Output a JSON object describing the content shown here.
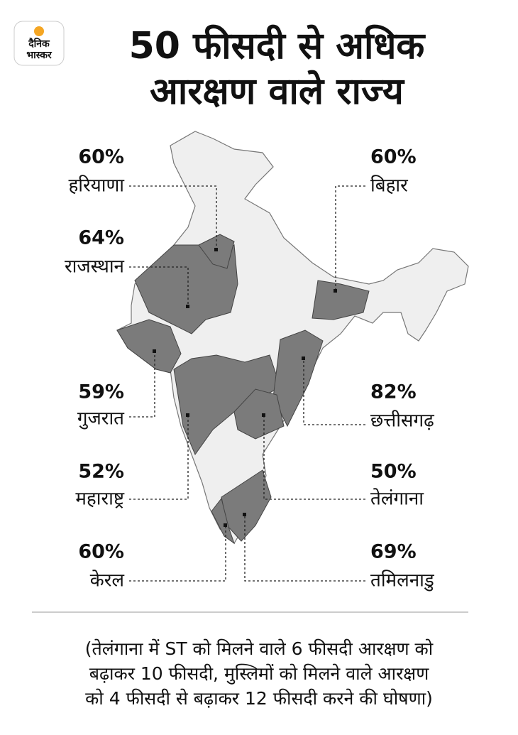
{
  "logo": {
    "line1": "दैनिक",
    "line2": "भास्कर"
  },
  "title": {
    "line1": "50 फीसदी से अधिक",
    "line2": "आरक्षण वाले राज्य"
  },
  "states": [
    {
      "percent": "60%",
      "name": "हरियाणा"
    },
    {
      "percent": "64%",
      "name": "राजस्थान"
    },
    {
      "percent": "59%",
      "name": "गुजरात"
    },
    {
      "percent": "52%",
      "name": "महाराष्ट्र"
    },
    {
      "percent": "60%",
      "name": "केरल"
    },
    {
      "percent": "60%",
      "name": "बिहार"
    },
    {
      "percent": "82%",
      "name": "छत्तीसगढ़"
    },
    {
      "percent": "50%",
      "name": "तेलंगाना"
    },
    {
      "percent": "69%",
      "name": "तमिलनाडु"
    }
  ],
  "footnote": {
    "lines": [
      "(तेलंगाना में ST को मिलने वाले 6 फीसदी आरक्षण को",
      "बढ़ाकर 10 फीसदी, मुस्लिमों को मिलने वाले आरक्षण",
      "को 4 फीसदी से बढ़ाकर 12 फीसदी करने की घोषणा)"
    ]
  }
}
